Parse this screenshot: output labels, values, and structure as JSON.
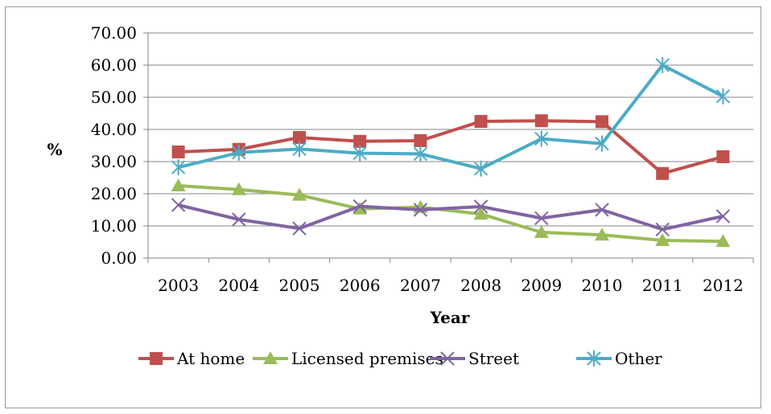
{
  "chart_data": {
    "type": "line",
    "title": "",
    "xlabel": "Year",
    "ylabel": "%",
    "ylim": [
      0,
      70
    ],
    "yticks": [
      "0.00",
      "10.00",
      "20.00",
      "30.00",
      "40.00",
      "50.00",
      "60.00",
      "70.00"
    ],
    "grid": true,
    "legend_position": "bottom",
    "categories": [
      "2003",
      "2004",
      "2005",
      "2006",
      "2007",
      "2008",
      "2009",
      "2010",
      "2011",
      "2012"
    ],
    "series": [
      {
        "name": "At home",
        "color": "#c0504d",
        "marker": "square",
        "values": [
          33.0,
          33.8,
          37.5,
          36.3,
          36.5,
          42.5,
          42.7,
          42.4,
          26.3,
          31.5
        ]
      },
      {
        "name": "Licensed premises",
        "color": "#9bbb59",
        "marker": "triangle",
        "values": [
          22.5,
          21.3,
          19.6,
          15.3,
          15.8,
          13.7,
          8.0,
          7.2,
          5.5,
          5.2
        ]
      },
      {
        "name": "Street",
        "color": "#8064a2",
        "marker": "x",
        "values": [
          16.5,
          12.0,
          9.2,
          16.1,
          15.0,
          16.0,
          12.4,
          15.0,
          8.9,
          13.0
        ]
      },
      {
        "name": "Other",
        "color": "#4bacc6",
        "marker": "star",
        "values": [
          28.2,
          32.8,
          33.9,
          32.6,
          32.4,
          27.8,
          37.1,
          35.6,
          60.0,
          50.3
        ]
      }
    ]
  }
}
